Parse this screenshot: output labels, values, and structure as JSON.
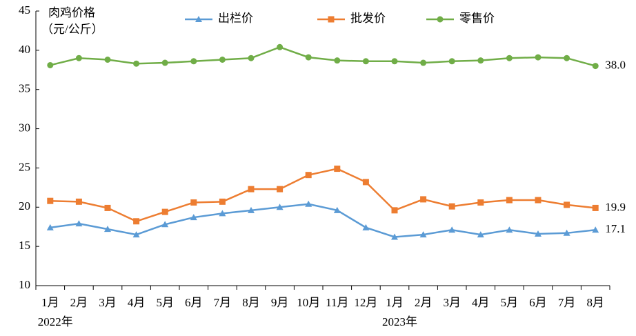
{
  "chart_data": {
    "type": "line",
    "ylabel": [
      "肉鸡价格",
      "（元/公斤）"
    ],
    "categories": [
      "1月",
      "2月",
      "3月",
      "4月",
      "5月",
      "6月",
      "7月",
      "8月",
      "9月",
      "10月",
      "11月",
      "12月",
      "1月",
      "2月",
      "3月",
      "4月",
      "5月",
      "6月",
      "7月",
      "8月"
    ],
    "year_labels": [
      "2022年",
      "2023年"
    ],
    "ylim": [
      10,
      45
    ],
    "yticks": [
      10,
      15,
      20,
      25,
      30,
      35,
      40,
      45
    ],
    "grid": false,
    "series": [
      {
        "name": "出栏价",
        "color": "#5b9bd5",
        "marker": "triangle",
        "values": [
          17.4,
          17.9,
          17.2,
          16.5,
          17.8,
          18.7,
          19.2,
          19.6,
          20.0,
          20.4,
          19.6,
          17.4,
          16.2,
          16.5,
          17.1,
          16.5,
          17.1,
          16.6,
          16.7,
          17.1
        ],
        "value_labels": [
          null,
          null,
          null,
          null,
          null,
          null,
          null,
          null,
          null,
          null,
          null,
          null,
          null,
          null,
          null,
          null,
          null,
          null,
          null,
          "17.1"
        ]
      },
      {
        "name": "批发价",
        "color": "#ed7d31",
        "marker": "square",
        "values": [
          20.8,
          20.7,
          19.9,
          18.2,
          19.4,
          20.6,
          20.7,
          22.3,
          22.3,
          24.1,
          24.9,
          23.2,
          19.6,
          21.0,
          20.1,
          20.6,
          20.9,
          20.9,
          20.3,
          19.9
        ],
        "value_labels": [
          null,
          null,
          null,
          null,
          null,
          null,
          null,
          null,
          null,
          null,
          null,
          null,
          null,
          null,
          null,
          null,
          null,
          null,
          null,
          "19.9"
        ]
      },
      {
        "name": "零售价",
        "color": "#70ad47",
        "marker": "circle",
        "values": [
          38.1,
          39.0,
          38.8,
          38.3,
          38.4,
          38.6,
          38.8,
          39.0,
          40.4,
          39.1,
          38.7,
          38.6,
          38.6,
          38.4,
          38.6,
          38.7,
          39.0,
          39.1,
          39.0,
          38.0
        ],
        "value_labels": [
          null,
          null,
          null,
          null,
          null,
          null,
          null,
          null,
          null,
          null,
          null,
          null,
          null,
          null,
          null,
          null,
          null,
          null,
          null,
          "38.0"
        ]
      }
    ]
  }
}
